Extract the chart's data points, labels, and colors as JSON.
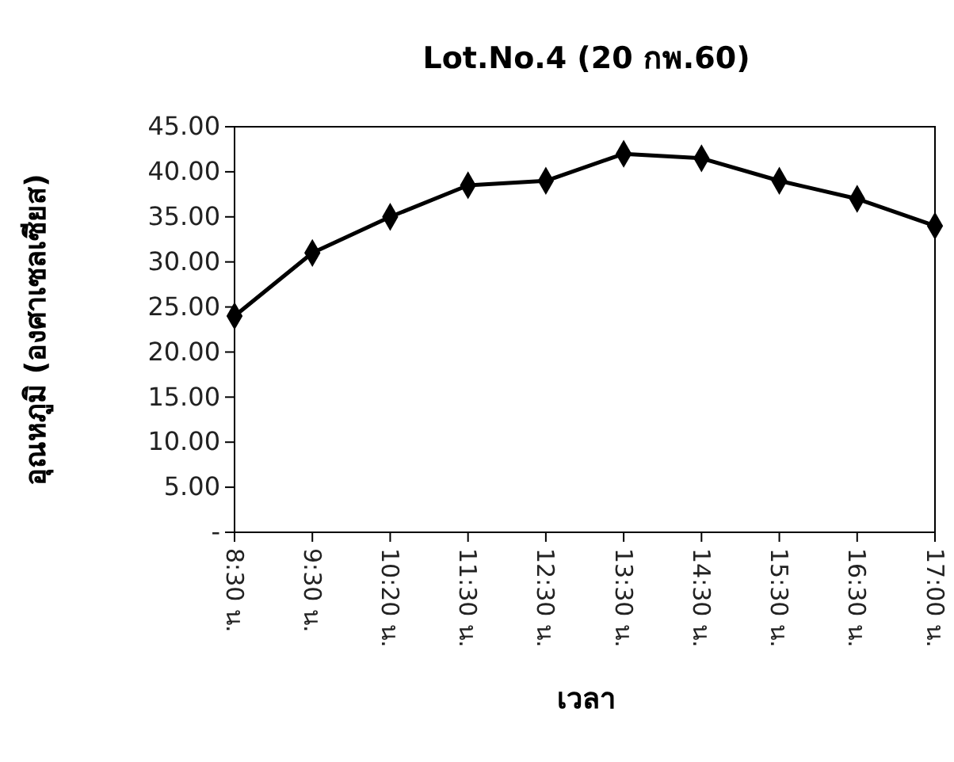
{
  "chart_data": {
    "type": "line",
    "title": "Lot.No.4 (20 กพ.60)",
    "xlabel": "เวลา",
    "ylabel": "อุณหภูมิ (องศาเซลเซียส)",
    "categories": [
      "8:30 น.",
      "9:30 น.",
      "10:20 น.",
      "11:30 น.",
      "12:30 น.",
      "13:30 น.",
      "14:30 น.",
      "15:30 น.",
      "16:30 น.",
      "17:00 น."
    ],
    "series": [
      {
        "color": "#000000",
        "values": [
          24,
          31,
          35,
          38.5,
          39,
          42,
          41.5,
          39,
          37,
          34
        ]
      }
    ],
    "ylim": [
      0,
      45
    ],
    "yticks": [
      {
        "value": 0,
        "label": "-"
      },
      {
        "value": 5,
        "label": "5.00"
      },
      {
        "value": 10,
        "label": "10.00"
      },
      {
        "value": 15,
        "label": "15.00"
      },
      {
        "value": 20,
        "label": "20.00"
      },
      {
        "value": 25,
        "label": "25.00"
      },
      {
        "value": 30,
        "label": "30.00"
      },
      {
        "value": 35,
        "label": "35.00"
      },
      {
        "value": 40,
        "label": "40.00"
      },
      {
        "value": 45,
        "label": "45.00"
      }
    ],
    "marker": "diamond",
    "line_style": "solid"
  }
}
